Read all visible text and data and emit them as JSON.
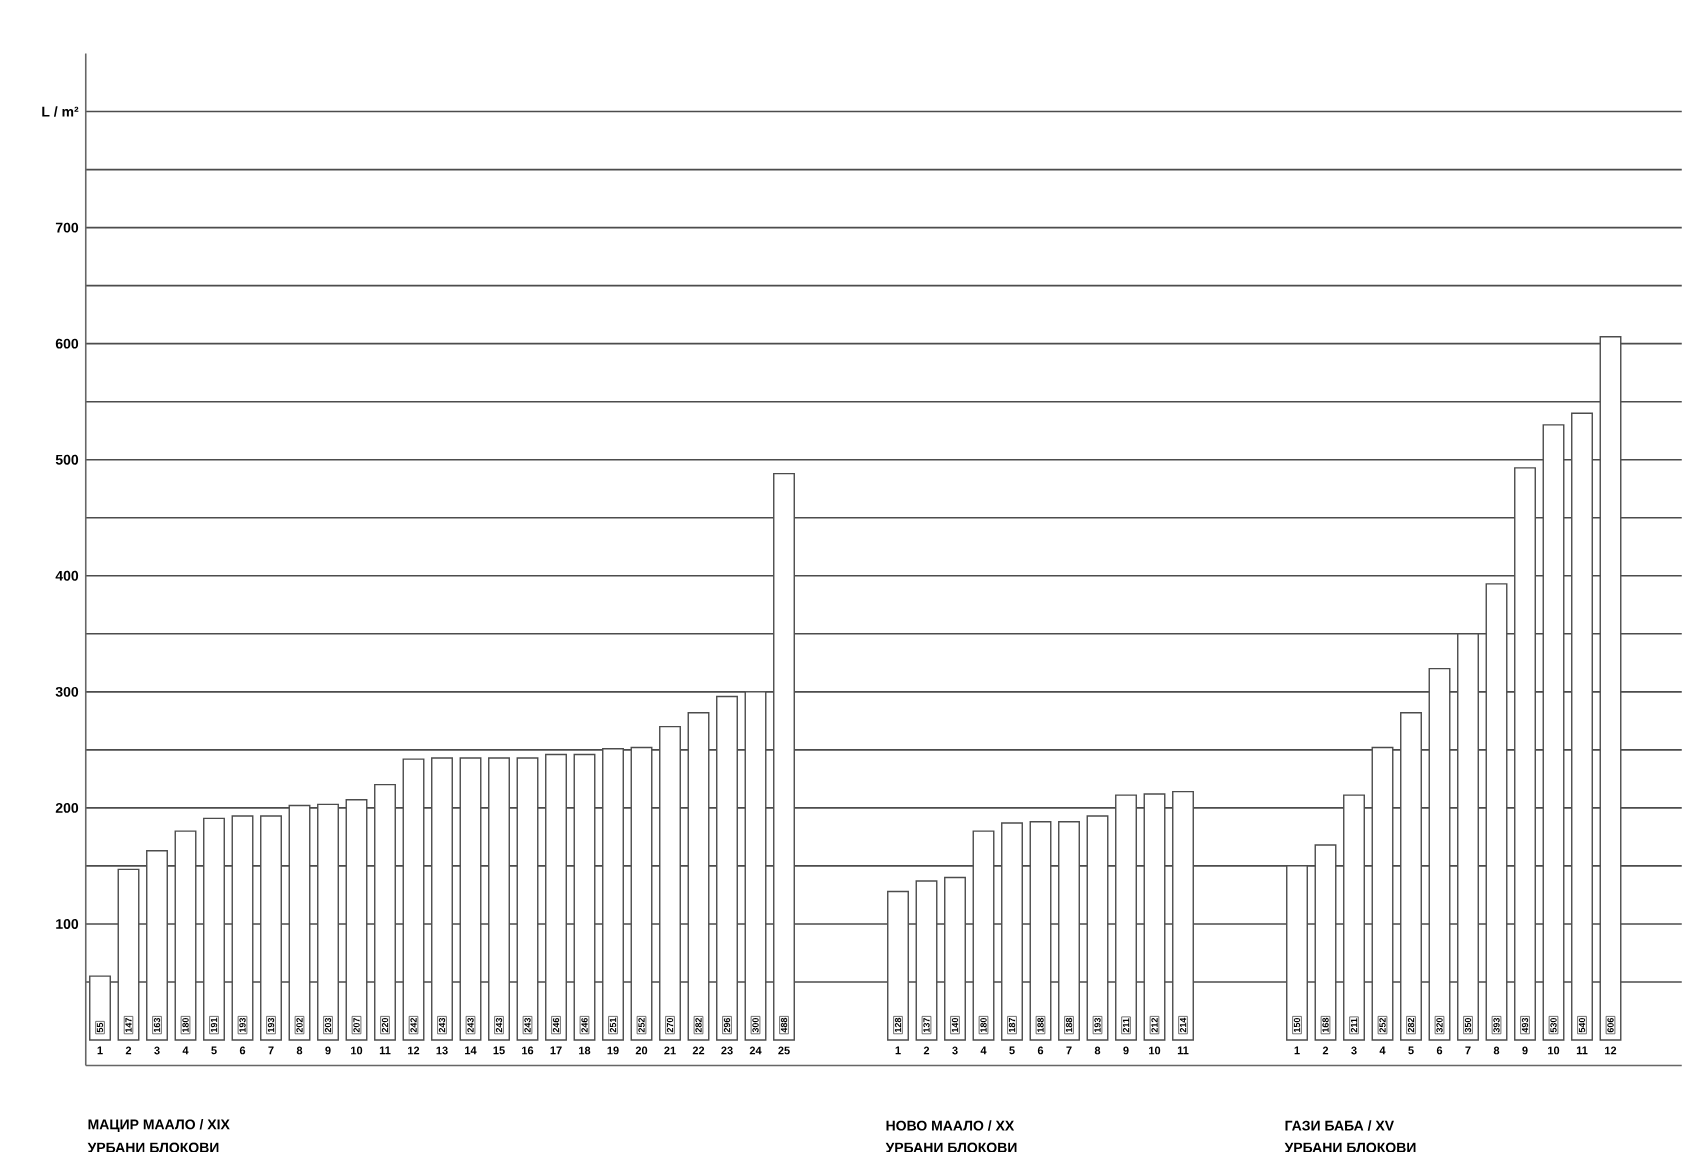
{
  "chart_data": {
    "type": "bar",
    "categories": [
      "1",
      "2",
      "3",
      "4",
      "5",
      "6",
      "7",
      "8",
      "9",
      "10",
      "11",
      "12",
      "13",
      "14",
      "15",
      "16",
      "17",
      "18",
      "19",
      "20",
      "21",
      "22",
      "23",
      "24",
      "25",
      null,
      null,
      null,
      "1",
      "2",
      "3",
      "4",
      "5",
      "6",
      "7",
      "8",
      "9",
      "10",
      "11",
      null,
      null,
      null,
      "1",
      "2",
      "3",
      "4",
      "5",
      "6",
      "7",
      "8",
      "9",
      "10",
      "11",
      "12"
    ],
    "values": [
      55,
      147,
      163,
      180,
      191,
      193,
      193,
      202,
      203,
      207,
      220,
      242,
      243,
      243,
      243,
      243,
      246,
      246,
      251,
      252,
      270,
      282,
      296,
      300,
      488,
      null,
      null,
      null,
      128,
      137,
      140,
      180,
      187,
      188,
      188,
      193,
      211,
      212,
      214,
      null,
      null,
      null,
      150,
      168,
      211,
      252,
      282,
      320,
      350,
      393,
      493,
      530,
      540,
      606
    ],
    "color": "#ffffff",
    "data_labels": true,
    "ylim": [
      -22,
      850
    ],
    "yticks": [
      {
        "value": 50,
        "label": null
      },
      100,
      {
        "value": 150,
        "label": null
      },
      200,
      {
        "value": 250,
        "label": null
      },
      300,
      {
        "value": 350,
        "label": null
      },
      400,
      {
        "value": 450,
        "label": null
      },
      500,
      {
        "value": 550,
        "label": null
      },
      600,
      {
        "value": 650,
        "label": null
      },
      700,
      {
        "value": 750,
        "label": null
      },
      {
        "value": 800,
        "label": "L / m²"
      }
    ],
    "grid": "y",
    "annotations": [
      "МАЦИР МААЛО / XIX",
      "УРБАНИ БЛОКОВИ",
      "НОВО МААЛО / XX",
      "УРБАНИ БЛОКОВИ",
      "ГАЗИ БАБА / XV",
      "УРБАНИ БЛОКОВИ"
    ]
  }
}
